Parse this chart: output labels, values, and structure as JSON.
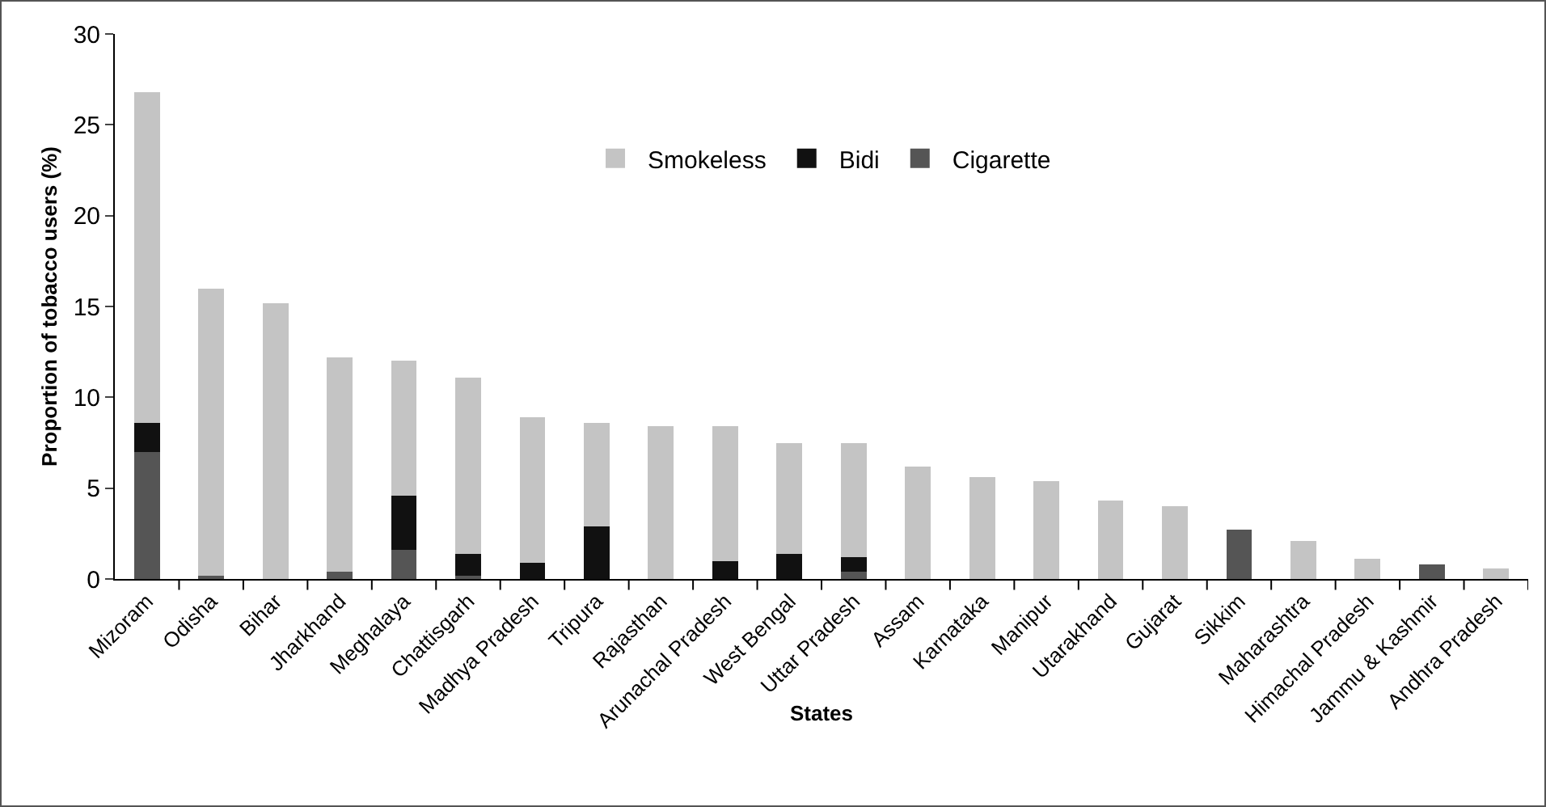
{
  "chart_data": {
    "type": "bar",
    "stacked": true,
    "xlabel": "States",
    "ylabel": "Proportion of tobacco users (%)",
    "categories": [
      "Mizoram",
      "Odisha",
      "Bihar",
      "Jharkhand",
      "Meghalaya",
      "Chattisgarh",
      "Madhya Pradesh",
      "Tripura",
      "Rajasthan",
      "Arunachal Pradesh",
      "West Bengal",
      "Uttar Pradesh",
      "Assam",
      "Karnataka",
      "Manipur",
      "Utarakhand",
      "Gujarat",
      "Sikkim",
      "Maharashtra",
      "Himachal Pradesh",
      "Jammu & Kashmir",
      "Andhra Pradesh"
    ],
    "series": [
      {
        "name": "Cigarette",
        "color": "#555555",
        "values": [
          7.0,
          0.2,
          0,
          0.4,
          1.6,
          0.2,
          0,
          0,
          0,
          0,
          0,
          0.4,
          0,
          0,
          0,
          0,
          0,
          2.7,
          0,
          0,
          0.8,
          0
        ]
      },
      {
        "name": "Bidi",
        "color": "#111111",
        "values": [
          1.6,
          0,
          0,
          0,
          3.0,
          1.2,
          0.9,
          2.9,
          0,
          1.0,
          1.4,
          0.8,
          0,
          0,
          0,
          0,
          0,
          0,
          0,
          0,
          0,
          0
        ]
      },
      {
        "name": "Smokeless",
        "color": "#c4c4c4",
        "values": [
          18.2,
          15.8,
          15.2,
          11.8,
          7.4,
          9.7,
          8.0,
          5.7,
          8.4,
          7.4,
          6.1,
          6.3,
          6.2,
          5.6,
          5.4,
          4.3,
          4.0,
          0,
          2.1,
          1.1,
          0,
          0.6
        ]
      }
    ],
    "ylim": [
      0,
      30
    ],
    "yticks": [
      0,
      5,
      10,
      15,
      20,
      25,
      30
    ],
    "grid": false,
    "legend": "top"
  }
}
